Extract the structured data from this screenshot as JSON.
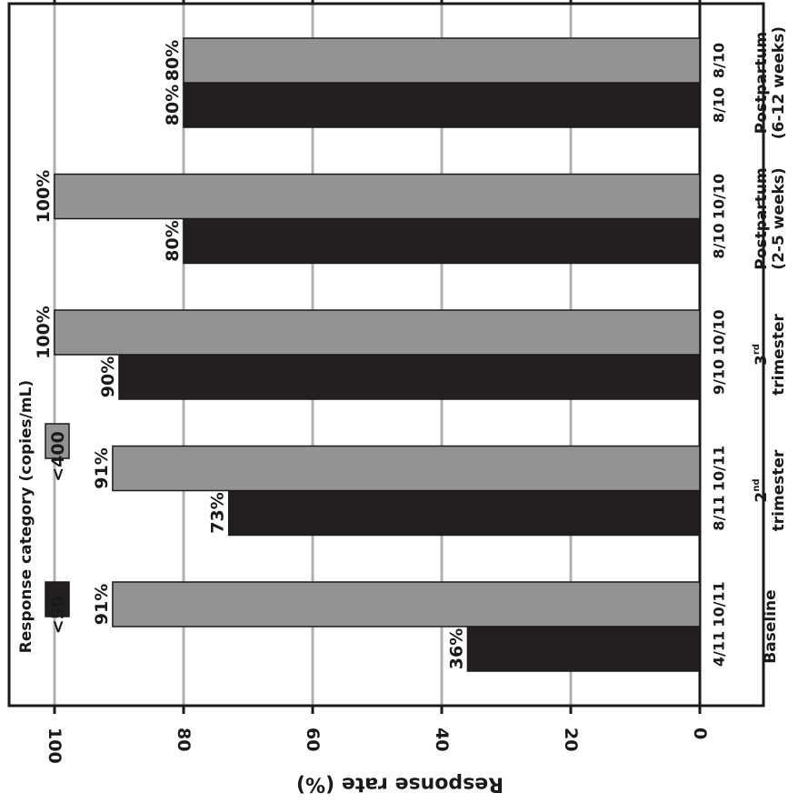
{
  "chart_data": {
    "type": "bar",
    "orientation": "rotated-90",
    "title": "",
    "ylabel": "Response rate (%)",
    "ylim": [
      0,
      100
    ],
    "yticks": [
      0,
      20,
      40,
      60,
      80,
      100
    ],
    "grid": true,
    "legend": {
      "title": "Response category (copies/mL)",
      "position": "top-left"
    },
    "categories": [
      {
        "label": "Baseline",
        "sup": "",
        "line2": ""
      },
      {
        "label": "2",
        "sup": "nd",
        "line2": "trimester"
      },
      {
        "label": "3",
        "sup": "rd",
        "line2": "trimester"
      },
      {
        "label": "Postpartum",
        "sup": "",
        "line2": "(2-5 weeks)"
      },
      {
        "label": "Postpartum",
        "sup": "",
        "line2": "(6-12 weeks)"
      }
    ],
    "series": [
      {
        "name": "<50",
        "color": "#231f20",
        "values": [
          36,
          73,
          90,
          80,
          80
        ],
        "labels": [
          "36%",
          "73%",
          "90%",
          "80%",
          "80%"
        ],
        "fractions": [
          "4/11",
          "8/11",
          "9/10",
          "8/10",
          "8/10"
        ]
      },
      {
        "name": "<400",
        "color": "#939393",
        "values": [
          91,
          91,
          100,
          100,
          80
        ],
        "labels": [
          "91%",
          "91%",
          "100%",
          "100%",
          "80%"
        ],
        "fractions": [
          "10/11",
          "10/11",
          "10/10",
          "10/10",
          "8/10"
        ]
      }
    ]
  }
}
